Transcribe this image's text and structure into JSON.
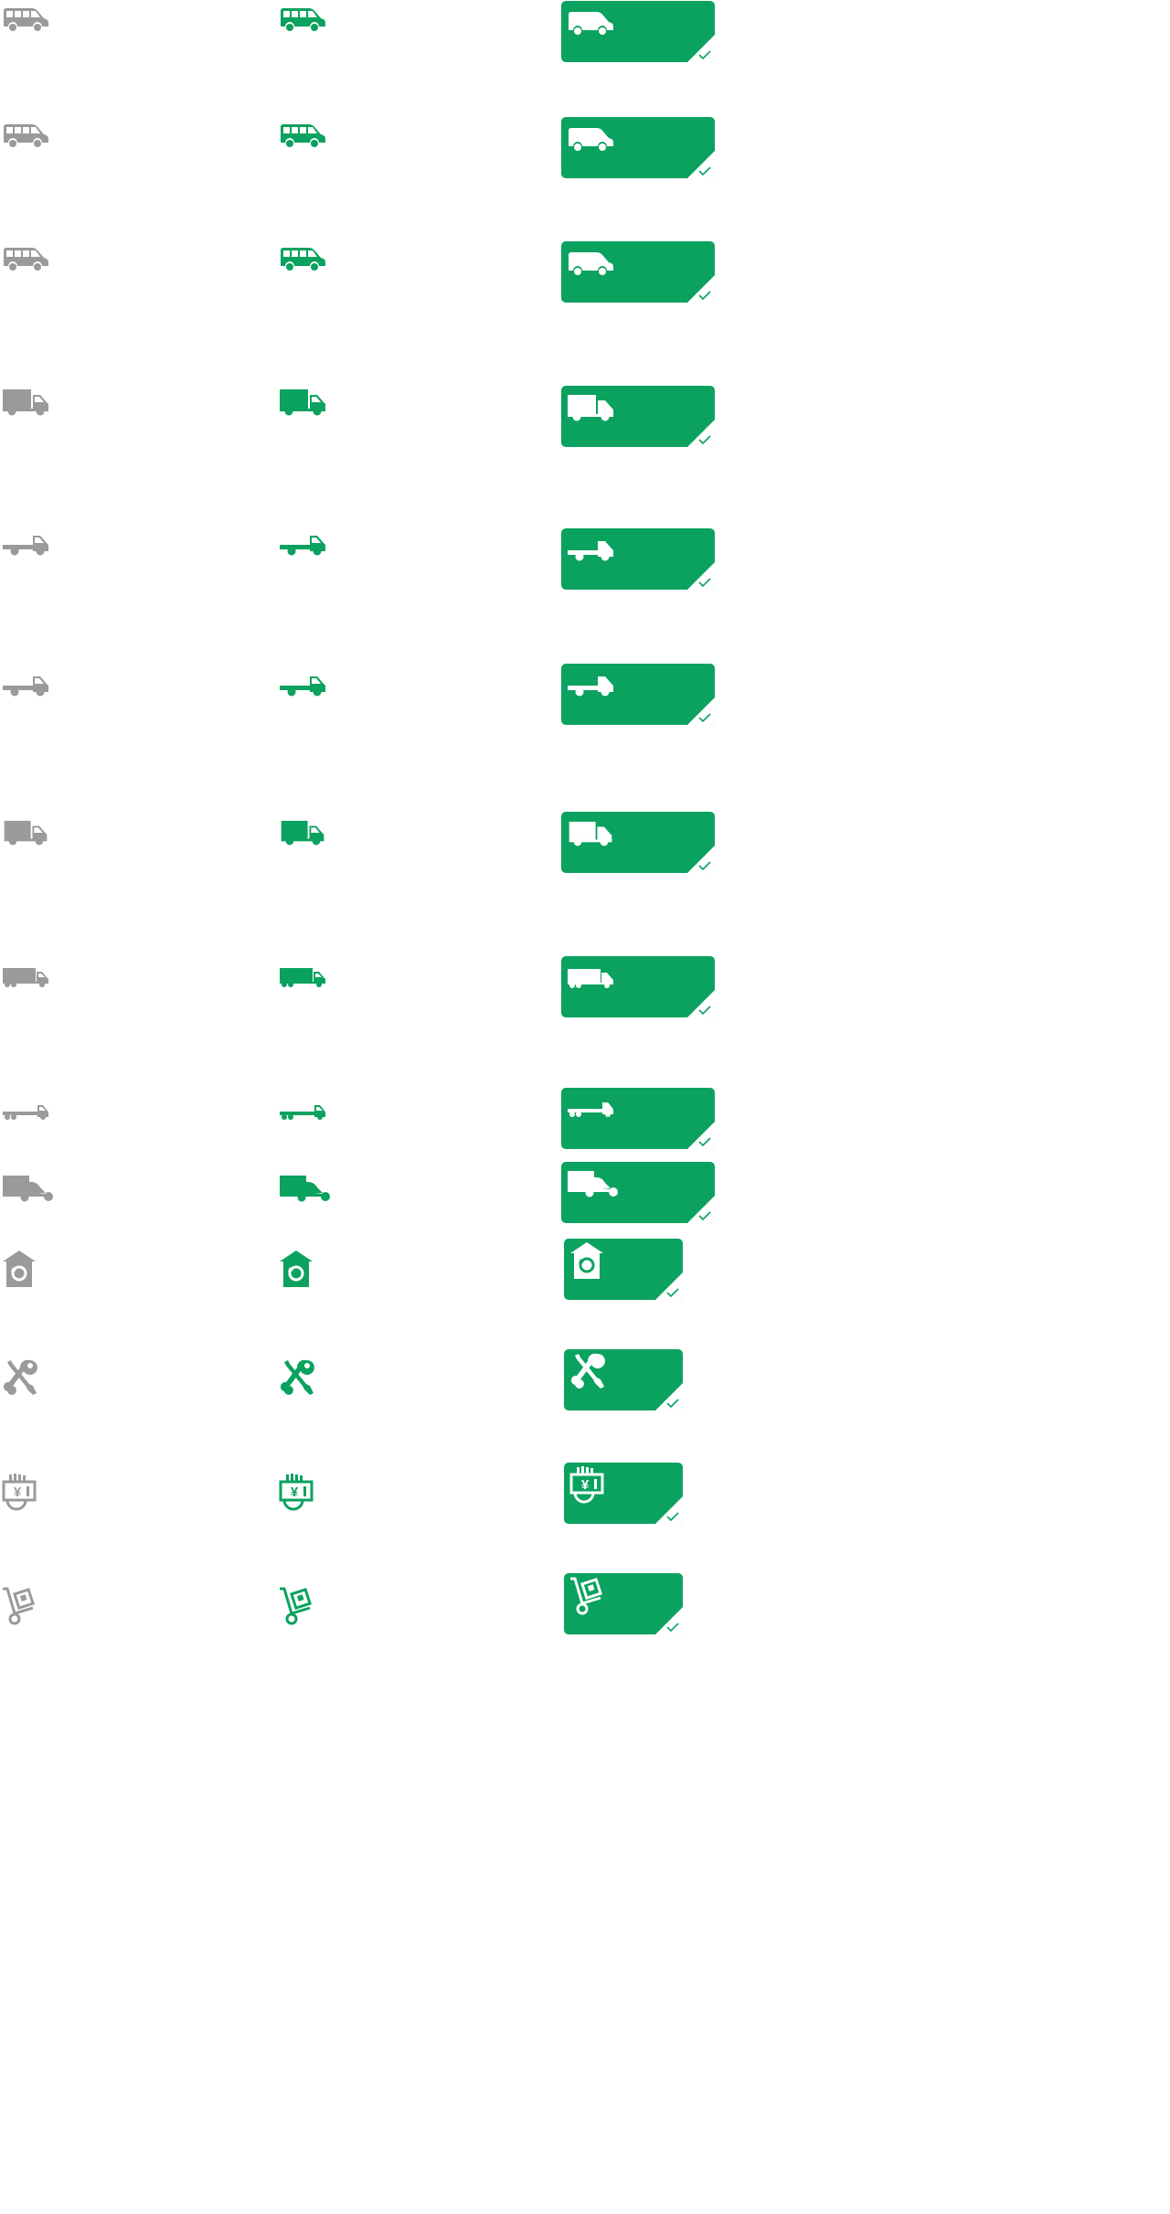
{
  "colors": {
    "inactive": "#9a9a9a",
    "active": "#0aa25e",
    "card_bg": "#0aa25e",
    "card_icon": "#ffffff"
  },
  "rows": [
    {
      "id": "van-1",
      "icon": "van-icon"
    },
    {
      "id": "van-2",
      "icon": "van-icon"
    },
    {
      "id": "van-3",
      "icon": "van-icon"
    },
    {
      "id": "box-truck-small",
      "icon": "box-truck-icon"
    },
    {
      "id": "flatbed-small",
      "icon": "flatbed-truck-icon"
    },
    {
      "id": "flatbed-medium",
      "icon": "flatbed-truck-icon"
    },
    {
      "id": "box-truck-medium",
      "icon": "box-truck-icon"
    },
    {
      "id": "box-truck-large",
      "icon": "long-box-truck-icon"
    },
    {
      "id": "flatbed-large",
      "icon": "long-flatbed-truck-icon"
    },
    {
      "id": "tricycle-truck",
      "icon": "tricycle-truck-icon"
    },
    {
      "id": "home-moving",
      "icon": "house-refresh-icon"
    },
    {
      "id": "repair-tools",
      "icon": "wrench-screwdriver-icon"
    },
    {
      "id": "payment",
      "icon": "yuan-payment-icon"
    },
    {
      "id": "hand-truck",
      "icon": "hand-truck-icon"
    }
  ],
  "cards": [
    {
      "variant": "wide"
    },
    {
      "variant": "wide"
    },
    {
      "variant": "wide"
    },
    {
      "variant": "wide"
    },
    {
      "variant": "wide"
    },
    {
      "variant": "wide"
    },
    {
      "variant": "wide"
    },
    {
      "variant": "wide"
    },
    {
      "variant": "wide"
    },
    {
      "variant": "wide"
    },
    {
      "variant": "narrow"
    },
    {
      "variant": "narrow"
    },
    {
      "variant": "narrow"
    },
    {
      "variant": "narrow"
    }
  ]
}
